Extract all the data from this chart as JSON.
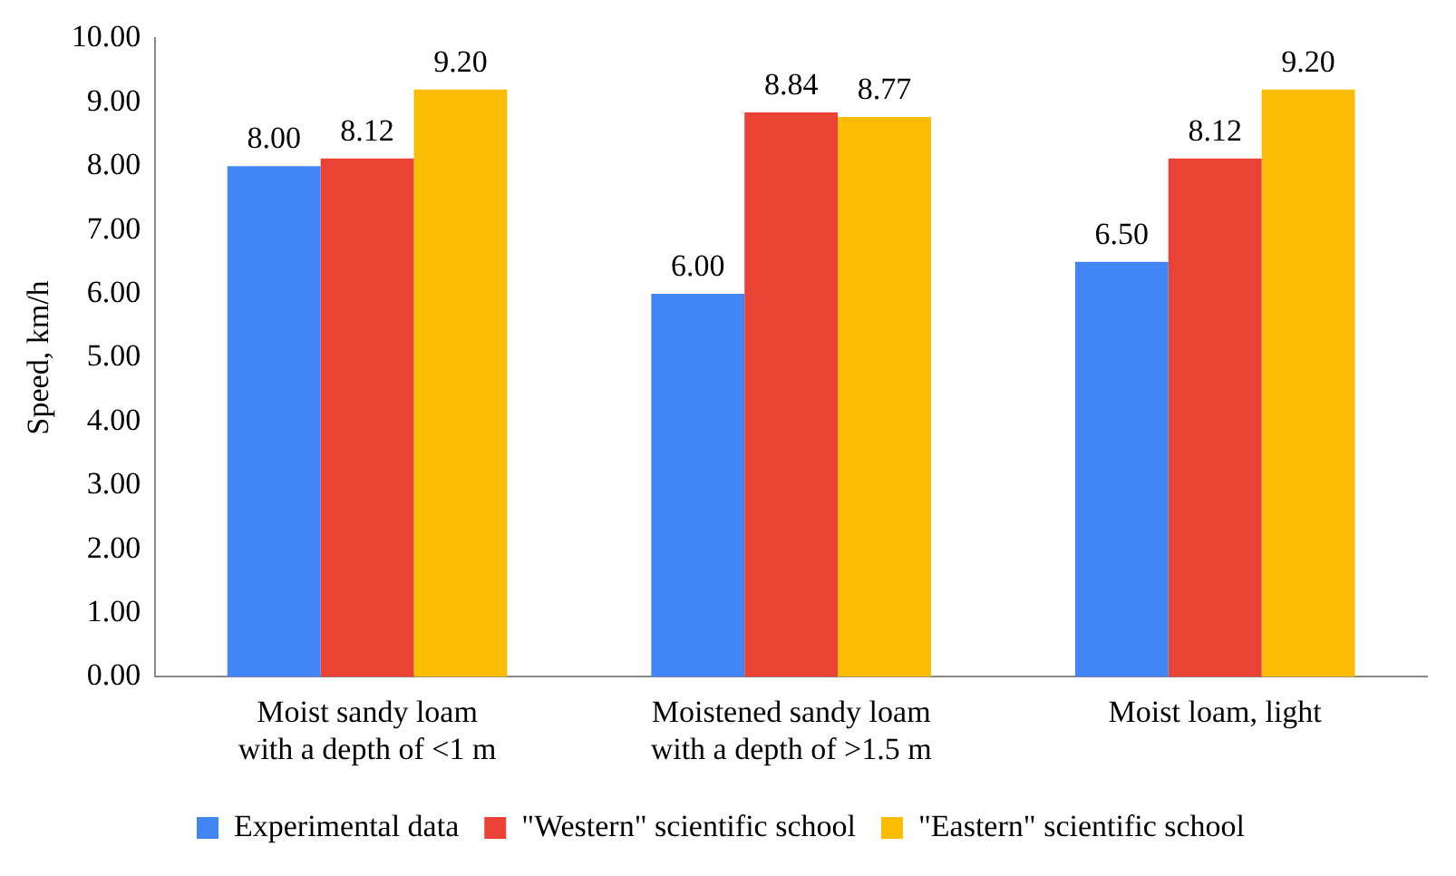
{
  "chart_data": {
    "type": "bar",
    "ylabel": "Speed, km/h",
    "categories": [
      "Moist sandy loam\nwith a depth of <1 m",
      "Moistened sandy loam\nwith a depth of >1.5 m",
      "Moist loam, light"
    ],
    "series": [
      {
        "name": "Experimental data",
        "color": "#4285f4",
        "values": [
          8.0,
          6.0,
          6.5
        ],
        "value_labels": [
          "8.00",
          "6.00",
          "6.50"
        ]
      },
      {
        "name": "\"Western\" scientific school",
        "color": "#ea4335",
        "values": [
          8.12,
          8.84,
          8.12
        ],
        "value_labels": [
          "8.12",
          "8.84",
          "8.12"
        ]
      },
      {
        "name": "\"Eastern\" scientific school",
        "color": "#fbbc04",
        "values": [
          9.2,
          8.77,
          9.2
        ],
        "value_labels": [
          "9.20",
          "8.77",
          "9.20"
        ]
      }
    ],
    "ylim": [
      0,
      10
    ],
    "yticks": [
      {
        "value": 0,
        "label": "0.00"
      },
      {
        "value": 1,
        "label": "1.00"
      },
      {
        "value": 2,
        "label": "2.00"
      },
      {
        "value": 3,
        "label": "3.00"
      },
      {
        "value": 4,
        "label": "4.00"
      },
      {
        "value": 5,
        "label": "5.00"
      },
      {
        "value": 6,
        "label": "6.00"
      },
      {
        "value": 7,
        "label": "7.00"
      },
      {
        "value": 8,
        "label": "8.00"
      },
      {
        "value": 9,
        "label": "9.00"
      },
      {
        "value": 10,
        "label": "10.00"
      }
    ],
    "grid": false,
    "legend": "bottom"
  }
}
